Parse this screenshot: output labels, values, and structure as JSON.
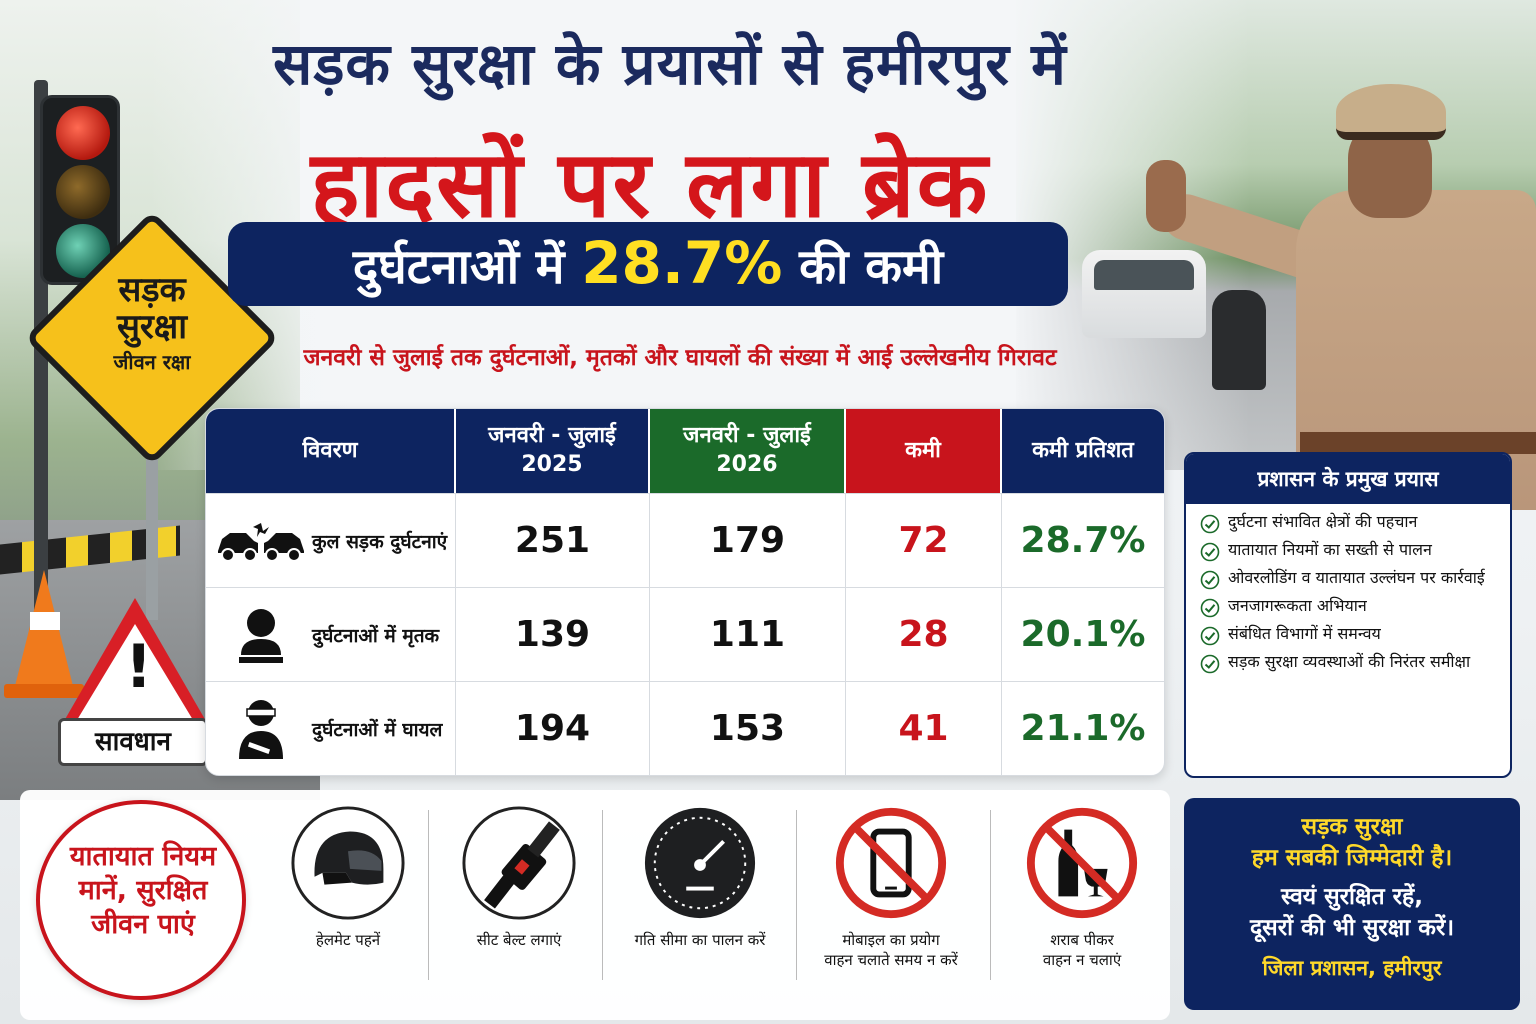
{
  "header": {
    "title_line1": "सड़क सुरक्षा के प्रयासों से हमीरपुर में",
    "title_line2": "हादसों पर लगा ब्रेक",
    "banner_pre": "दुर्घटनाओं में ",
    "banner_highlight": "28.7%",
    "banner_post": " की कमी",
    "subtitle": "जनवरी से जुलाई तक दुर्घटनाओं, मृतकों और घायलों की संख्या में आई उल्लेखनीय गिरावट"
  },
  "signs": {
    "road_safety_line1": "सड़क",
    "road_safety_line2": "सुरक्षा",
    "road_safety_line3": "जीवन रक्षा",
    "caution": "सावधान"
  },
  "table": {
    "headers": {
      "detail": "विवरण",
      "period_2025_line1": "जनवरी - जुलाई",
      "period_2025_line2": "2025",
      "period_2026_line1": "जनवरी - जुलाई",
      "period_2026_line2": "2026",
      "reduction": "कमी",
      "reduction_percent": "कमी प्रतिशत"
    },
    "rows": [
      {
        "icon": "car-crash-icon",
        "label": "कुल सड़क दुर्घटनाएं",
        "y2025": "251",
        "y2026": "179",
        "reduction": "72",
        "percent": "28.7%"
      },
      {
        "icon": "person-icon",
        "label": "दुर्घटनाओं में मृतक",
        "y2025": "139",
        "y2026": "111",
        "reduction": "28",
        "percent": "20.1%"
      },
      {
        "icon": "injured-person-icon",
        "label": "दुर्घटनाओं में घायल",
        "y2025": "194",
        "y2026": "153",
        "reduction": "41",
        "percent": "21.1%"
      }
    ]
  },
  "efforts": {
    "title": "प्रशासन के प्रमुख प्रयास",
    "items": [
      "दुर्घटना संभावित क्षेत्रों की पहचान",
      "यातायात नियमों का सख्ती से पालन",
      "ओवरलोडिंग व यातायात उल्लंघन पर कार्रवाई",
      "जनजागरूकता अभियान",
      "संबंधित विभागों में समन्वय",
      "सड़क सुरक्षा व्यवस्थाओं की निरंतर समीक्षा"
    ]
  },
  "slogan": {
    "line1": "यातायात नियम",
    "line2": "मानें, सुरक्षित",
    "line3": "जीवन पाएं"
  },
  "tips": [
    {
      "icon": "helmet-icon",
      "label_line1": "हेलमेट पहनें",
      "label_line2": ""
    },
    {
      "icon": "seat-belt-icon",
      "label_line1": "सीट बेल्ट लगाएं",
      "label_line2": ""
    },
    {
      "icon": "speedometer-icon",
      "label_line1": "गति सीमा का पालन करें",
      "label_line2": ""
    },
    {
      "icon": "no-mobile-icon",
      "label_line1": "मोबाइल का प्रयोग",
      "label_line2": "वाहन चलाते समय न करें"
    },
    {
      "icon": "no-alcohol-icon",
      "label_line1": "शराब पीकर",
      "label_line2": "वाहन न चलाएं"
    }
  ],
  "message": {
    "yellow_line1": "सड़क सुरक्षा",
    "yellow_line2": "हम सबकी जिम्मेदारी है।",
    "white_line1": "स्वयं सुरक्षित रहें,",
    "white_line2": "दूसरों की भी सुरक्षा करें।",
    "footer": "जिला प्रशासन, हमीरपुर"
  },
  "colors": {
    "navy": "#0d2460",
    "red": "#c8141c",
    "green": "#1b6a2a",
    "yellow": "#ffdf22"
  }
}
